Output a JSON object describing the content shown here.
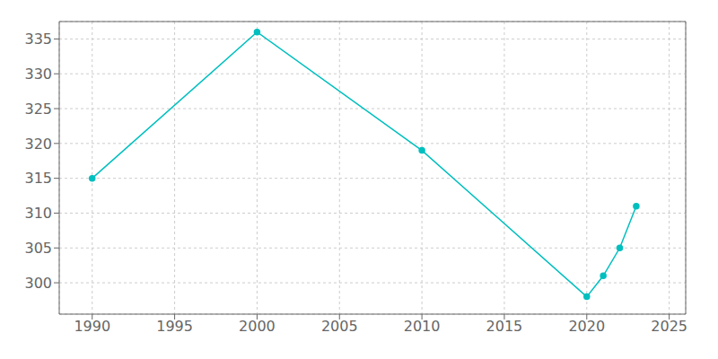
{
  "chart_data": {
    "type": "line",
    "x": [
      1990,
      2000,
      2010,
      2020,
      2021,
      2022,
      2023
    ],
    "values": [
      315,
      336,
      319,
      298,
      301,
      305,
      311
    ],
    "color": "#00BFBF",
    "marker": "circle",
    "xlim": [
      1988,
      2026
    ],
    "ylim": [
      295.5,
      337.5
    ],
    "xticks": [
      1990,
      1995,
      2000,
      2005,
      2010,
      2015,
      2020,
      2025
    ],
    "yticks": [
      300,
      305,
      310,
      315,
      320,
      325,
      330,
      335
    ],
    "grid": true
  }
}
